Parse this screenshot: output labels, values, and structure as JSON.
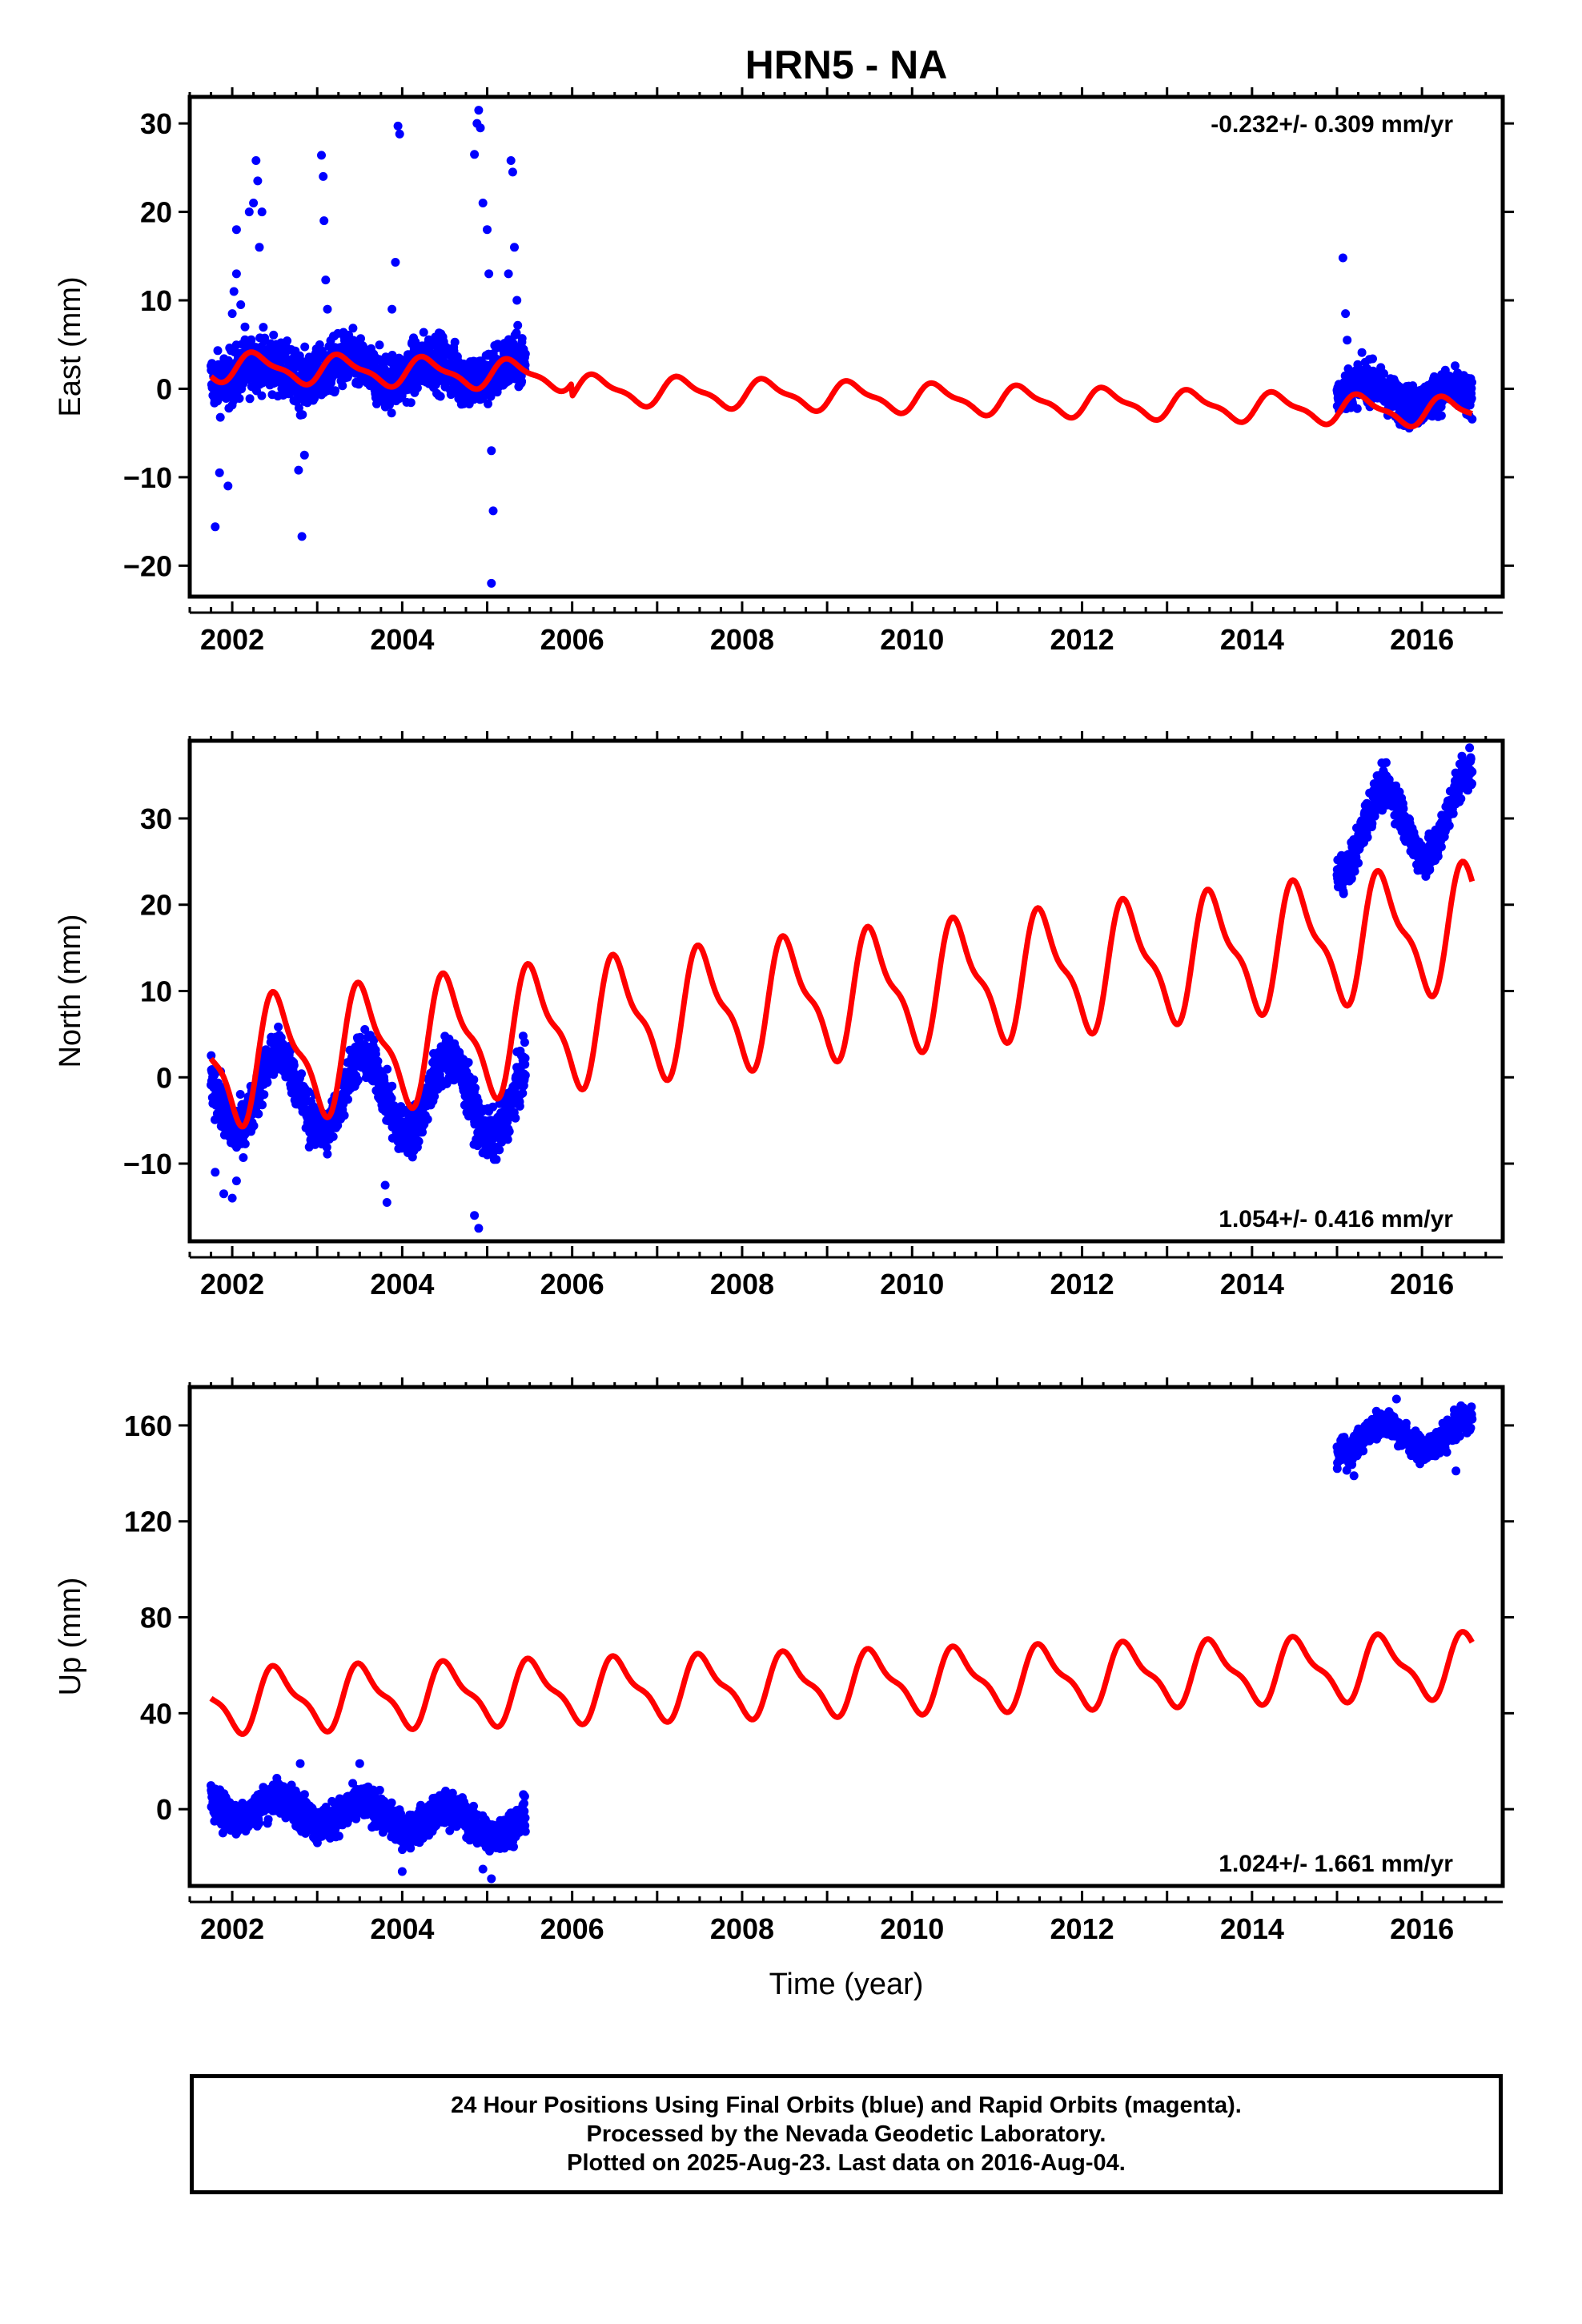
{
  "colors": {
    "observed": "#0000ff",
    "model": "#ff0000",
    "frame": "#000000"
  },
  "footer": {
    "line1": "24 Hour Positions Using Final Orbits (blue) and Rapid Orbits (magenta).",
    "line2": "Processed by the Nevada Geodetic Laboratory.",
    "line3": "Plotted on 2025-Aug-23. Last data on 2016-Aug-04."
  },
  "chart_data": [
    {
      "type": "scatter",
      "title": "HRN5 - NA",
      "xlabel": "",
      "ylabel": "East (mm)",
      "xlim": [
        2001.5,
        2016.95
      ],
      "ylim": [
        -23.5,
        33
      ],
      "xticks": [
        2002,
        2004,
        2006,
        2008,
        2010,
        2012,
        2014,
        2016
      ],
      "yticks": [
        -20,
        -10,
        0,
        10,
        20,
        30
      ],
      "rate_label": "-0.232+/- 0.309 mm/yr",
      "rate_position": "top-right",
      "series": [
        {
          "kind": "observed",
          "segments": [
            {
              "start": 2001.75,
              "end": 2005.45,
              "trend_start": 2.0,
              "trend_end": 2.0,
              "amplitude": 1.2,
              "phase": 0.1,
              "noise": 2.2
            },
            {
              "start": 2015.0,
              "end": 2016.59,
              "trend_start": 0.0,
              "trend_end": -1.5,
              "amplitude": 1.2,
              "phase": 0.1,
              "noise": 1.6
            }
          ],
          "spikes": [
            {
              "x": 2001.8,
              "y": -15.6
            },
            {
              "x": 2001.85,
              "y": -9.5
            },
            {
              "x": 2001.95,
              "y": -11
            },
            {
              "x": 2002.0,
              "y": 8.5
            },
            {
              "x": 2002.02,
              "y": 11
            },
            {
              "x": 2002.05,
              "y": 13
            },
            {
              "x": 2002.05,
              "y": 18
            },
            {
              "x": 2002.1,
              "y": 9.5
            },
            {
              "x": 2002.15,
              "y": 7
            },
            {
              "x": 2002.2,
              "y": 20
            },
            {
              "x": 2002.25,
              "y": 21
            },
            {
              "x": 2002.28,
              "y": 25.8
            },
            {
              "x": 2002.3,
              "y": 23.5
            },
            {
              "x": 2002.32,
              "y": 16
            },
            {
              "x": 2002.35,
              "y": 20
            },
            {
              "x": 2002.78,
              "y": -9.2
            },
            {
              "x": 2002.82,
              "y": -16.7
            },
            {
              "x": 2002.85,
              "y": -7.5
            },
            {
              "x": 2003.05,
              "y": 26.4
            },
            {
              "x": 2003.07,
              "y": 24
            },
            {
              "x": 2003.08,
              "y": 19
            },
            {
              "x": 2003.1,
              "y": 12.3
            },
            {
              "x": 2003.12,
              "y": 9
            },
            {
              "x": 2003.88,
              "y": 9
            },
            {
              "x": 2003.92,
              "y": 14.3
            },
            {
              "x": 2003.95,
              "y": 29.7
            },
            {
              "x": 2003.97,
              "y": 28.8
            },
            {
              "x": 2004.85,
              "y": 26.5
            },
            {
              "x": 2004.88,
              "y": 30
            },
            {
              "x": 2004.9,
              "y": 31.5
            },
            {
              "x": 2004.92,
              "y": 29.5
            },
            {
              "x": 2004.95,
              "y": 21
            },
            {
              "x": 2005.0,
              "y": 18
            },
            {
              "x": 2005.02,
              "y": 13
            },
            {
              "x": 2005.05,
              "y": -7
            },
            {
              "x": 2005.07,
              "y": -13.8
            },
            {
              "x": 2005.05,
              "y": -22
            },
            {
              "x": 2005.25,
              "y": 13
            },
            {
              "x": 2005.28,
              "y": 25.8
            },
            {
              "x": 2005.3,
              "y": 24.5
            },
            {
              "x": 2005.32,
              "y": 16
            },
            {
              "x": 2005.35,
              "y": 10
            },
            {
              "x": 2015.07,
              "y": 14.8
            },
            {
              "x": 2015.1,
              "y": 8.5
            },
            {
              "x": 2015.12,
              "y": 5.5
            }
          ]
        },
        {
          "kind": "model",
          "start": 2001.75,
          "end": 2016.59,
          "trend_start": 2.5,
          "trend_end": -1.2,
          "amplitude": 1.5,
          "phase": 0.05,
          "offsets": [
            {
              "t": 2006.0,
              "d": -1.5
            }
          ]
        }
      ]
    },
    {
      "type": "scatter",
      "title": "",
      "xlabel": "",
      "ylabel": "North (mm)",
      "xlim": [
        2001.5,
        2016.95
      ],
      "ylim": [
        -19,
        39
      ],
      "xticks": [
        2002,
        2004,
        2006,
        2008,
        2010,
        2012,
        2014,
        2016
      ],
      "yticks": [
        -10,
        0,
        10,
        20,
        30
      ],
      "rate_label": "1.054+/- 0.416 mm/yr",
      "rate_position": "bottom-right",
      "series": [
        {
          "kind": "observed",
          "segments": [
            {
              "start": 2001.75,
              "end": 2005.45,
              "trend_start": -1.5,
              "trend_end": -2.5,
              "amplitude": 4.5,
              "phase": 0.3,
              "noise": 2.0
            },
            {
              "start": 2015.0,
              "end": 2016.59,
              "trend_start": 28.0,
              "trend_end": 31.0,
              "amplitude": 4.5,
              "phase": 0.3,
              "noise": 1.6
            }
          ],
          "spikes": [
            {
              "x": 2002.0,
              "y": -14
            },
            {
              "x": 2002.05,
              "y": -12
            },
            {
              "x": 2003.8,
              "y": -12.5
            },
            {
              "x": 2003.82,
              "y": -14.5
            },
            {
              "x": 2004.85,
              "y": -16
            },
            {
              "x": 2004.9,
              "y": -17.5
            },
            {
              "x": 2001.8,
              "y": -11
            },
            {
              "x": 2001.9,
              "y": -13.5
            }
          ]
        },
        {
          "kind": "model",
          "start": 2001.75,
          "end": 2016.59,
          "trend_start": 1.5,
          "trend_end": 17.5,
          "amplitude": 6.5,
          "phase": 0.3,
          "offsets": []
        }
      ]
    },
    {
      "type": "scatter",
      "title": "",
      "xlabel": "Time (year)",
      "ylabel": "Up (mm)",
      "xlim": [
        2001.5,
        2016.95
      ],
      "ylim": [
        -32,
        176
      ],
      "xticks": [
        2002,
        2004,
        2006,
        2008,
        2010,
        2012,
        2014,
        2016
      ],
      "yticks": [
        0,
        40,
        80,
        120,
        160
      ],
      "rate_label": "1.024+/- 1.661 mm/yr",
      "rate_position": "bottom-right",
      "series": [
        {
          "kind": "observed",
          "segments": [
            {
              "start": 2001.75,
              "end": 2005.45,
              "trend_start": 2.0,
              "trend_end": -7.0,
              "amplitude": 5.0,
              "phase": 0.3,
              "noise": 5.0
            },
            {
              "start": 2015.0,
              "end": 2016.59,
              "trend_start": 154.0,
              "trend_end": 157.0,
              "amplitude": 6.0,
              "phase": 0.3,
              "noise": 4.0
            }
          ],
          "spikes": [
            {
              "x": 2004.0,
              "y": -26
            },
            {
              "x": 2004.95,
              "y": -25
            },
            {
              "x": 2005.05,
              "y": -29
            },
            {
              "x": 2002.8,
              "y": 19
            },
            {
              "x": 2003.5,
              "y": 19
            },
            {
              "x": 2015.2,
              "y": 139
            },
            {
              "x": 2016.4,
              "y": 141
            },
            {
              "x": 2015.7,
              "y": 171
            }
          ]
        },
        {
          "kind": "model",
          "start": 2001.75,
          "end": 2016.59,
          "trend_start": 45.0,
          "trend_end": 60.0,
          "amplitude": 12.0,
          "phase": 0.3,
          "offsets": []
        }
      ]
    }
  ]
}
